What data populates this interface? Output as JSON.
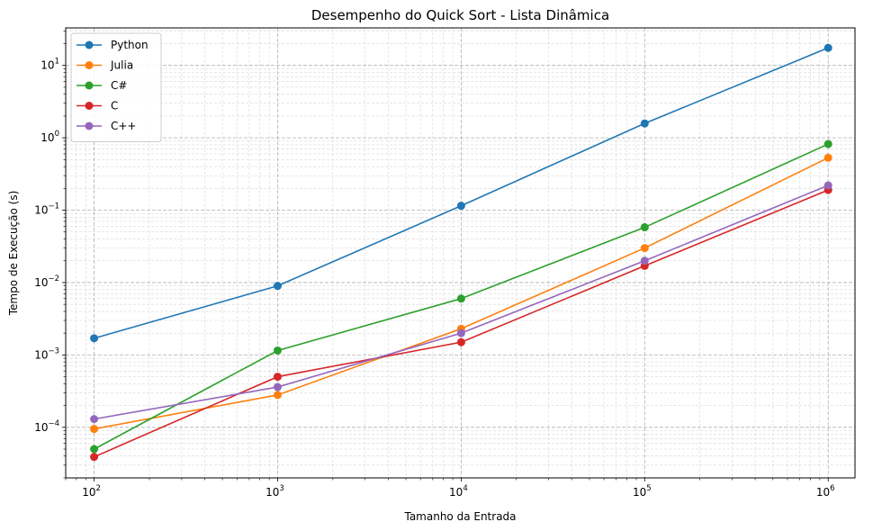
{
  "chart_data": {
    "type": "line",
    "title": "Desempenho do Quick Sort - Lista Dinâmica",
    "xlabel": "Tamanho da Entrada",
    "ylabel": "Tempo de Execução (s)",
    "xscale": "log",
    "yscale": "log",
    "xlim": [
      70,
      1400000
    ],
    "ylim": [
      2e-05,
      33
    ],
    "grid": true,
    "legend_position": "top-left",
    "x": [
      100,
      1000,
      10000,
      100000,
      1000000
    ],
    "x_ticks": [
      {
        "value": 100,
        "base": "10",
        "exp": "2"
      },
      {
        "value": 1000,
        "base": "10",
        "exp": "3"
      },
      {
        "value": 10000,
        "base": "10",
        "exp": "4"
      },
      {
        "value": 100000,
        "base": "10",
        "exp": "5"
      },
      {
        "value": 1000000,
        "base": "10",
        "exp": "6"
      }
    ],
    "y_ticks": [
      {
        "value": 0.0001,
        "base": "10",
        "exp": "−4"
      },
      {
        "value": 0.001,
        "base": "10",
        "exp": "−3"
      },
      {
        "value": 0.01,
        "base": "10",
        "exp": "−2"
      },
      {
        "value": 0.1,
        "base": "10",
        "exp": "−1"
      },
      {
        "value": 1,
        "base": "10",
        "exp": "0"
      },
      {
        "value": 10,
        "base": "10",
        "exp": "1"
      }
    ],
    "series": [
      {
        "name": "Python",
        "color": "#1f77b4",
        "values": [
          0.0017,
          0.009,
          0.115,
          1.58,
          17.5
        ]
      },
      {
        "name": "Julia",
        "color": "#ff7f0e",
        "values": [
          9.5e-05,
          0.00028,
          0.0023,
          0.03,
          0.53
        ]
      },
      {
        "name": "C#",
        "color": "#2ca02c",
        "values": [
          5e-05,
          0.00115,
          0.006,
          0.058,
          0.82
        ]
      },
      {
        "name": "C",
        "color": "#d62728",
        "values": [
          3.9e-05,
          0.0005,
          0.0015,
          0.017,
          0.19
        ]
      },
      {
        "name": "C++",
        "color": "#9467bd",
        "values": [
          0.00013,
          0.00036,
          0.002,
          0.02,
          0.22
        ]
      }
    ]
  }
}
